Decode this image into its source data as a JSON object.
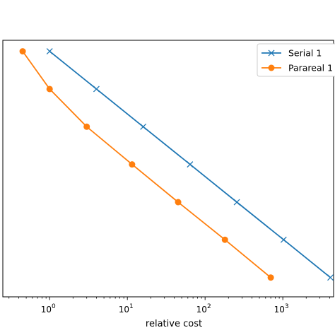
{
  "chart_data": {
    "type": "line",
    "xlabel": "relative cost",
    "ylabel": "",
    "x_scale": "log",
    "xlim": [
      0.25,
      4500
    ],
    "ylim": [
      0.00012,
      1.5
    ],
    "y_scale": "log",
    "x_ticks": [
      {
        "value": 1,
        "base": "10",
        "exp": "0"
      },
      {
        "value": 10,
        "base": "10",
        "exp": "1"
      },
      {
        "value": 100,
        "base": "10",
        "exp": "2"
      },
      {
        "value": 1000,
        "base": "10",
        "exp": "3"
      }
    ],
    "grid": false,
    "legend_position": "top-right",
    "series": [
      {
        "name": "Serial 1",
        "color": "#1f77b4",
        "marker": "x",
        "x": [
          1,
          4,
          16,
          64,
          256,
          1024,
          4096
        ],
        "y": [
          1,
          0.25,
          0.0625,
          0.015625,
          0.0039,
          0.00098,
          0.000244
        ]
      },
      {
        "name": "Parareal 1",
        "color": "#ff7f0e",
        "marker": "o",
        "x": [
          0.45,
          1,
          3,
          11.5,
          45,
          180,
          700
        ],
        "y": [
          1,
          0.25,
          0.0625,
          0.015625,
          0.0039,
          0.00098,
          0.000244
        ]
      }
    ]
  }
}
